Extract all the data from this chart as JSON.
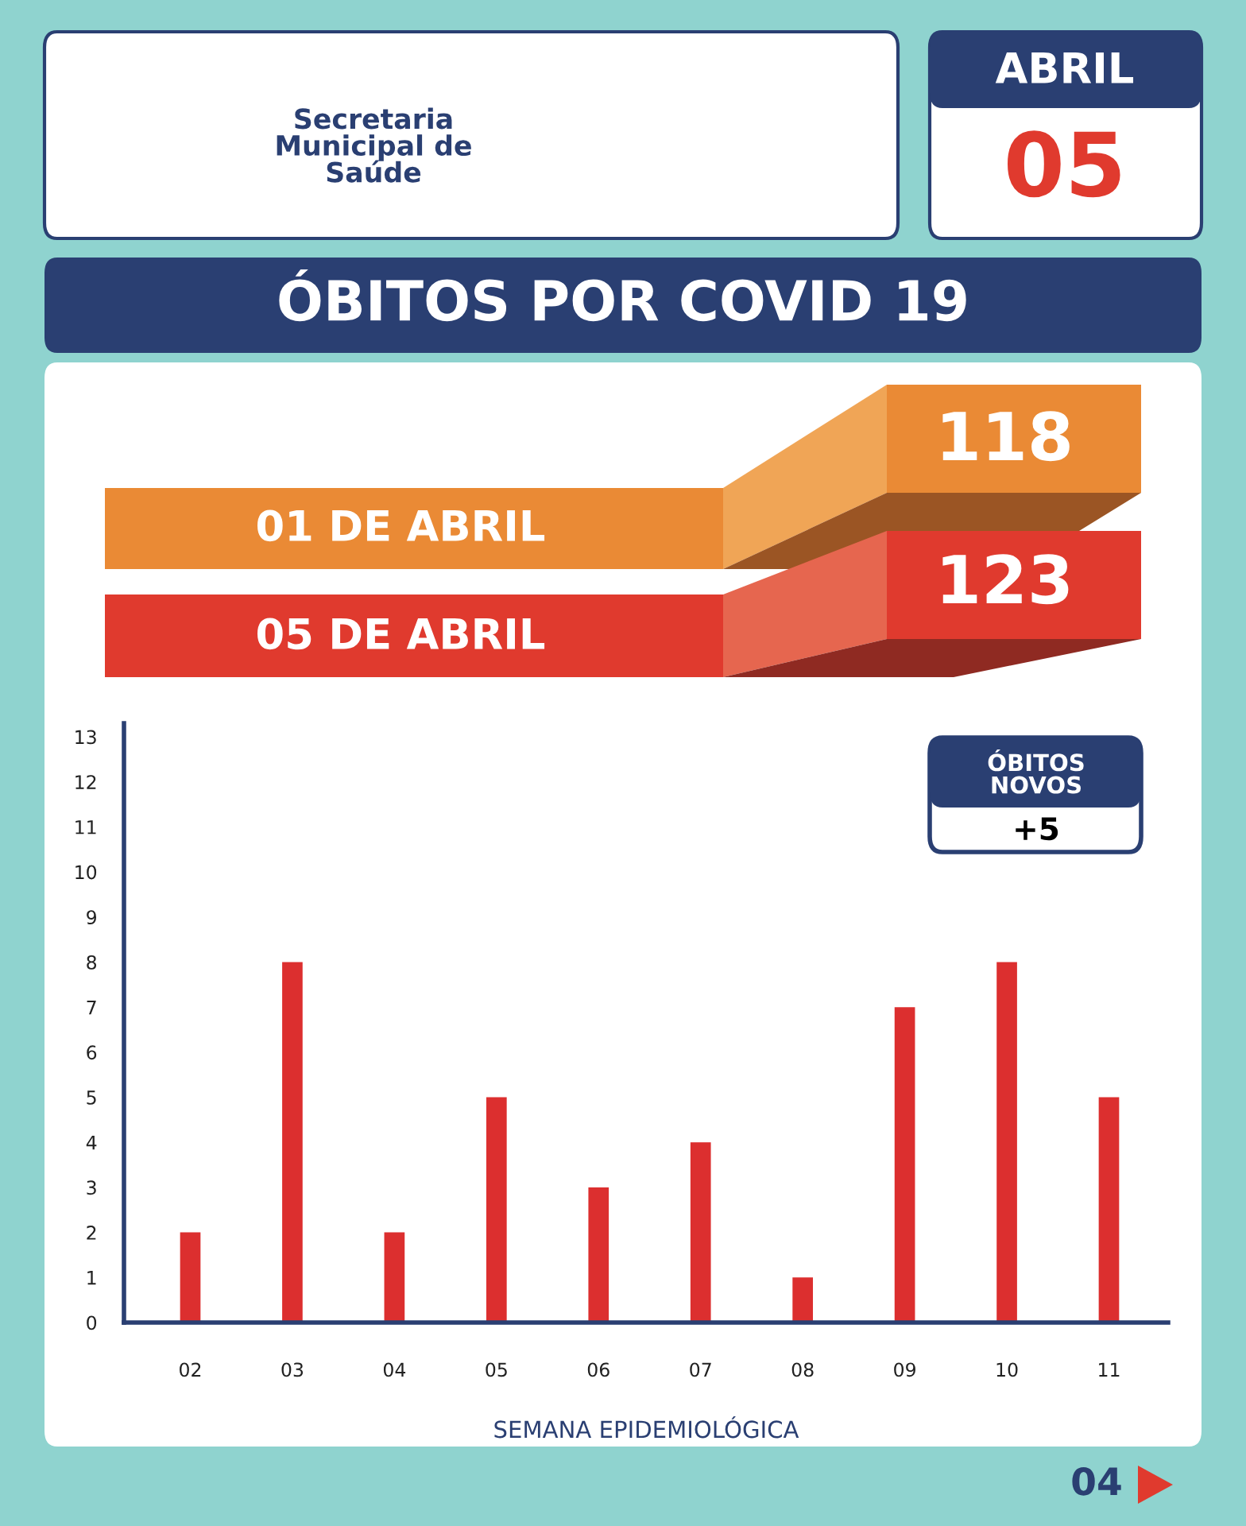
{
  "chart_data": {
    "type": "bar",
    "title": "ÓBITOS POR COVID 19",
    "xlabel": "SEMANA EPIDEMIOLÓGICA",
    "categories": [
      "02",
      "03",
      "04",
      "05",
      "06",
      "07",
      "08",
      "09",
      "10",
      "11"
    ],
    "values": [
      2,
      8,
      2,
      5,
      3,
      4,
      1,
      7,
      8,
      5
    ],
    "color": "#dc2f2f",
    "ylim": [
      0,
      13.3
    ],
    "yticks": [
      0,
      1,
      2,
      3,
      4,
      5,
      6,
      7,
      8,
      9,
      10,
      11,
      12,
      13
    ],
    "grid": false,
    "annotations": [
      "Secretaria Municipal de Saúde",
      "ABRIL",
      "05",
      "01 DE ABRIL",
      "118",
      "05 DE ABRIL",
      "123",
      "ÓBITOS NOVOS",
      "+5",
      "04"
    ]
  }
}
